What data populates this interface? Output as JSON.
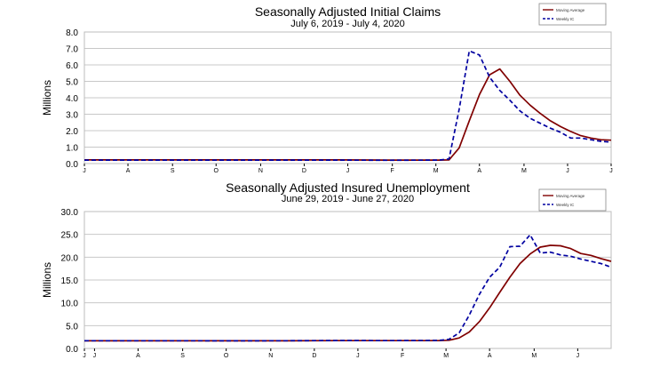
{
  "chart_data": [
    {
      "type": "line",
      "title": "Seasonally Adjusted Initial Claims",
      "subtitle": "July 6, 2019 - July 4, 2020",
      "ylabel": "Millions",
      "ylim": [
        0,
        8
      ],
      "yticks": [
        "0.0",
        "1.0",
        "2.0",
        "3.0",
        "4.0",
        "5.0",
        "6.0",
        "7.0",
        "8.0"
      ],
      "xlim": [
        0,
        52
      ],
      "xticks": [
        {
          "x": 0,
          "label": "J"
        },
        {
          "x": 4.3,
          "label": "A"
        },
        {
          "x": 8.7,
          "label": "S"
        },
        {
          "x": 13,
          "label": "O"
        },
        {
          "x": 17.4,
          "label": "N"
        },
        {
          "x": 21.7,
          "label": "D"
        },
        {
          "x": 26,
          "label": "J"
        },
        {
          "x": 30.4,
          "label": "F"
        },
        {
          "x": 34.7,
          "label": "M"
        },
        {
          "x": 39,
          "label": "A"
        },
        {
          "x": 43.4,
          "label": "M"
        },
        {
          "x": 47.7,
          "label": "J"
        },
        {
          "x": 52,
          "label": "J"
        }
      ],
      "grid": true,
      "legend": "top-right",
      "series": [
        {
          "name": "Moving Average",
          "color": "#800000",
          "dash": false,
          "points": [
            [
              0,
              0.22
            ],
            [
              5,
              0.22
            ],
            [
              10,
              0.22
            ],
            [
              15,
              0.22
            ],
            [
              20,
              0.22
            ],
            [
              25,
              0.22
            ],
            [
              30,
              0.21
            ],
            [
              35,
              0.21
            ],
            [
              36,
              0.22
            ],
            [
              37,
              0.95
            ],
            [
              38,
              2.6
            ],
            [
              39,
              4.2
            ],
            [
              40,
              5.4
            ],
            [
              41,
              5.75
            ],
            [
              42,
              5.0
            ],
            [
              43,
              4.15
            ],
            [
              44,
              3.55
            ],
            [
              45,
              3.05
            ],
            [
              46,
              2.6
            ],
            [
              47,
              2.25
            ],
            [
              48,
              1.95
            ],
            [
              49,
              1.7
            ],
            [
              50,
              1.55
            ],
            [
              51,
              1.45
            ],
            [
              52,
              1.42
            ]
          ]
        },
        {
          "name": "Weekly IC",
          "color": "#0000a0",
          "dash": true,
          "points": [
            [
              0,
              0.21
            ],
            [
              5,
              0.21
            ],
            [
              10,
              0.21
            ],
            [
              15,
              0.21
            ],
            [
              20,
              0.21
            ],
            [
              25,
              0.21
            ],
            [
              30,
              0.2
            ],
            [
              35,
              0.21
            ],
            [
              36,
              0.28
            ],
            [
              37,
              3.3
            ],
            [
              38,
              6.85
            ],
            [
              39,
              6.6
            ],
            [
              40,
              5.25
            ],
            [
              41,
              4.45
            ],
            [
              42,
              3.85
            ],
            [
              43,
              3.2
            ],
            [
              44,
              2.75
            ],
            [
              45,
              2.45
            ],
            [
              46,
              2.15
            ],
            [
              47,
              1.9
            ],
            [
              48,
              1.55
            ],
            [
              49,
              1.55
            ],
            [
              50,
              1.45
            ],
            [
              51,
              1.35
            ],
            [
              52,
              1.3
            ]
          ]
        }
      ]
    },
    {
      "type": "line",
      "title": "Seasonally Adjusted Insured Unemployment",
      "subtitle": "June 29, 2019 - June 27, 2020",
      "ylabel": "Millions",
      "ylim": [
        0,
        30
      ],
      "yticks": [
        "0.0",
        "5.0",
        "10.0",
        "15.0",
        "20.0",
        "25.0",
        "30.0"
      ],
      "xlim": [
        0,
        52
      ],
      "xticks": [
        {
          "x": 0,
          "label": "J"
        },
        {
          "x": 1,
          "label": "J"
        },
        {
          "x": 5.3,
          "label": "A"
        },
        {
          "x": 9.7,
          "label": "S"
        },
        {
          "x": 14,
          "label": "O"
        },
        {
          "x": 18.4,
          "label": "N"
        },
        {
          "x": 22.7,
          "label": "D"
        },
        {
          "x": 27,
          "label": "J"
        },
        {
          "x": 31.4,
          "label": "F"
        },
        {
          "x": 35.7,
          "label": "M"
        },
        {
          "x": 40,
          "label": "A"
        },
        {
          "x": 44.4,
          "label": "M"
        },
        {
          "x": 48.7,
          "label": "J"
        }
      ],
      "grid": true,
      "legend": "top-right",
      "series": [
        {
          "name": "Moving Average",
          "color": "#800000",
          "dash": false,
          "points": [
            [
              0,
              1.68
            ],
            [
              5,
              1.68
            ],
            [
              10,
              1.67
            ],
            [
              15,
              1.67
            ],
            [
              20,
              1.68
            ],
            [
              25,
              1.72
            ],
            [
              30,
              1.71
            ],
            [
              35,
              1.72
            ],
            [
              36,
              1.8
            ],
            [
              37,
              2.3
            ],
            [
              38,
              3.6
            ],
            [
              39,
              5.9
            ],
            [
              40,
              8.9
            ],
            [
              41,
              12.3
            ],
            [
              42,
              15.6
            ],
            [
              43,
              18.6
            ],
            [
              44,
              20.7
            ],
            [
              45,
              22.2
            ],
            [
              46,
              22.6
            ],
            [
              47,
              22.5
            ],
            [
              48,
              21.9
            ],
            [
              49,
              20.8
            ],
            [
              50,
              20.4
            ],
            [
              51,
              19.7
            ],
            [
              52,
              19.1
            ]
          ]
        },
        {
          "name": "Weekly IC",
          "color": "#0000a0",
          "dash": true,
          "points": [
            [
              0,
              1.7
            ],
            [
              5,
              1.7
            ],
            [
              10,
              1.69
            ],
            [
              15,
              1.68
            ],
            [
              20,
              1.69
            ],
            [
              25,
              1.74
            ],
            [
              30,
              1.72
            ],
            [
              35,
              1.75
            ],
            [
              36,
              2.0
            ],
            [
              37,
              3.4
            ],
            [
              38,
              7.3
            ],
            [
              39,
              11.9
            ],
            [
              40,
              15.6
            ],
            [
              41,
              17.8
            ],
            [
              42,
              22.3
            ],
            [
              43,
              22.4
            ],
            [
              44,
              24.9
            ],
            [
              45,
              20.9
            ],
            [
              46,
              21.1
            ],
            [
              47,
              20.5
            ],
            [
              48,
              20.2
            ],
            [
              49,
              19.6
            ],
            [
              50,
              19.1
            ],
            [
              51,
              18.6
            ],
            [
              52,
              17.8
            ]
          ]
        }
      ]
    }
  ]
}
